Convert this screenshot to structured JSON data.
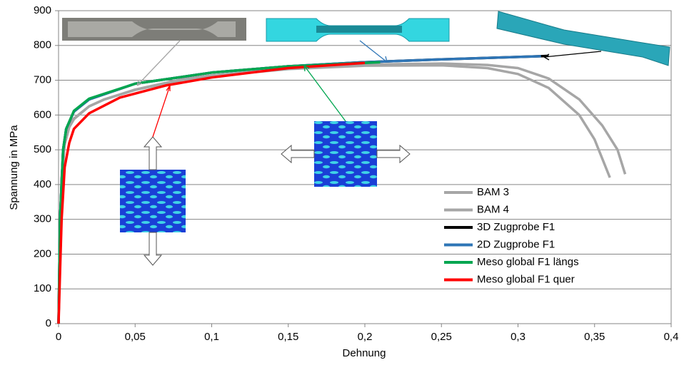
{
  "chart_data": {
    "type": "line",
    "x_label": "Dehnung",
    "y_label": "Spannung in MPa",
    "xlim": [
      0,
      0.4
    ],
    "xticks": [
      0,
      {
        "value": 0.05,
        "label": "0,05"
      },
      {
        "value": 0.1,
        "label": "0,1"
      },
      {
        "value": 0.15,
        "label": "0,15"
      },
      {
        "value": 0.2,
        "label": "0,2"
      },
      {
        "value": 0.25,
        "label": "0,25"
      },
      {
        "value": 0.3,
        "label": "0,3"
      },
      {
        "value": 0.35,
        "label": "0,35"
      },
      {
        "value": 0.4,
        "label": "0,4"
      }
    ],
    "ylim": [
      0,
      900
    ],
    "yticks": [
      0,
      100,
      200,
      300,
      400,
      500,
      600,
      700,
      800,
      900
    ],
    "grid": true,
    "series": [
      {
        "name": "BAM 3",
        "color": "#a6a6a6",
        "x": [
          0,
          0.001,
          0.002,
          0.004,
          0.007,
          0.01,
          0.02,
          0.03,
          0.05,
          0.08,
          0.1,
          0.15,
          0.2,
          0.25,
          0.28,
          0.3,
          0.32,
          0.34,
          0.35,
          0.36
        ],
        "values": [
          0,
          250,
          420,
          520,
          570,
          590,
          625,
          645,
          672,
          700,
          712,
          732,
          742,
          743,
          735,
          718,
          678,
          600,
          530,
          420
        ]
      },
      {
        "name": "BAM 4",
        "color": "#a6a6a6",
        "x": [
          0,
          0.001,
          0.002,
          0.004,
          0.007,
          0.01,
          0.02,
          0.03,
          0.05,
          0.08,
          0.1,
          0.15,
          0.2,
          0.25,
          0.28,
          0.3,
          0.32,
          0.34,
          0.355,
          0.365,
          0.37
        ],
        "values": [
          0,
          240,
          410,
          515,
          565,
          588,
          625,
          645,
          673,
          702,
          714,
          734,
          745,
          748,
          744,
          735,
          705,
          645,
          570,
          500,
          430
        ]
      },
      {
        "name": "3D Zugprobe F1",
        "color": "#000000",
        "x": [
          0,
          0.001,
          0.003,
          0.005,
          0.01,
          0.02,
          0.05,
          0.1,
          0.15,
          0.2,
          0.25,
          0.3,
          0.32
        ],
        "values": [
          0,
          300,
          500,
          560,
          610,
          645,
          690,
          722,
          740,
          752,
          760,
          767,
          770
        ]
      },
      {
        "name": "2D Zugprobe F1",
        "color": "#2e75b6",
        "x": [
          0,
          0.001,
          0.003,
          0.005,
          0.01,
          0.02,
          0.05,
          0.1,
          0.15,
          0.2,
          0.25,
          0.3,
          0.315
        ],
        "values": [
          0,
          300,
          500,
          560,
          610,
          645,
          690,
          722,
          740,
          752,
          760,
          767,
          769
        ]
      },
      {
        "name": "Meso global F1 längs",
        "color": "#00a650",
        "x": [
          0,
          0.001,
          0.003,
          0.005,
          0.01,
          0.02,
          0.05,
          0.1,
          0.15,
          0.2,
          0.21
        ],
        "values": [
          0,
          300,
          500,
          560,
          612,
          647,
          690,
          722,
          740,
          750,
          752
        ]
      },
      {
        "name": "Meso global F1 quer",
        "color": "#ff0000",
        "x": [
          0,
          0.001,
          0.002,
          0.004,
          0.007,
          0.01,
          0.02,
          0.04,
          0.07,
          0.1,
          0.15,
          0.2
        ],
        "values": [
          0,
          150,
          300,
          450,
          520,
          560,
          605,
          650,
          685,
          708,
          735,
          750
        ]
      }
    ]
  }
}
